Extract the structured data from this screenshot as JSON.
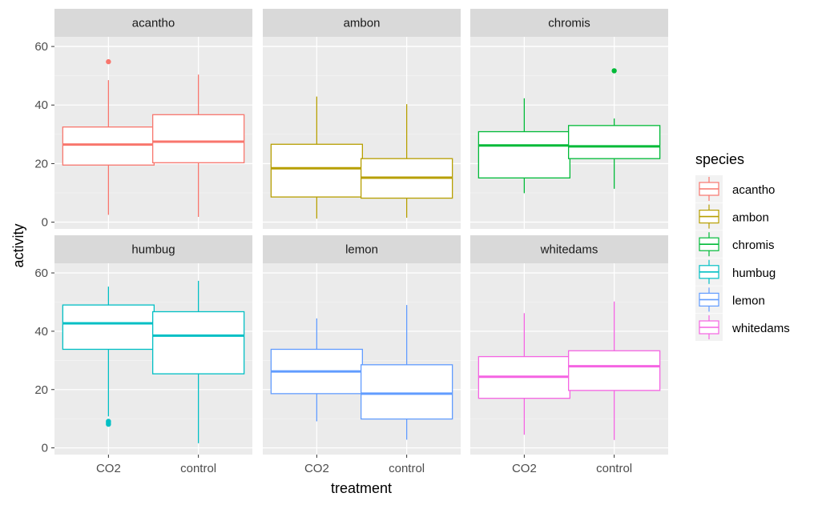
{
  "chart_data": {
    "type": "boxplot",
    "facet_by": "species",
    "x_categories": [
      "CO2",
      "control"
    ],
    "xlabel": "treatment",
    "ylabel": "activity",
    "ylim": [
      0,
      60
    ],
    "y_ticks": [
      0,
      20,
      40,
      60
    ],
    "grid": true,
    "legend": {
      "title": "species",
      "placement": "right",
      "entries": [
        {
          "label": "acantho",
          "color": "#F8766D"
        },
        {
          "label": "ambon",
          "color": "#B79F00"
        },
        {
          "label": "chromis",
          "color": "#00BA38"
        },
        {
          "label": "humbug",
          "color": "#00BFC4"
        },
        {
          "label": "lemon",
          "color": "#619CFF"
        },
        {
          "label": "whitedams",
          "color": "#F564E3"
        }
      ]
    },
    "panels": [
      {
        "species": "acantho",
        "color": "#F8766D",
        "boxes": [
          {
            "treatment": "CO2",
            "min": 2.5,
            "q1": 19.5,
            "median": 26.5,
            "q3": 32.5,
            "max": 48.5,
            "outliers": [
              54.8
            ]
          },
          {
            "treatment": "control",
            "min": 1.8,
            "q1": 20.3,
            "median": 27.5,
            "q3": 36.7,
            "max": 50.4,
            "outliers": []
          }
        ]
      },
      {
        "species": "ambon",
        "color": "#B79F00",
        "boxes": [
          {
            "treatment": "CO2",
            "min": 1.2,
            "q1": 8.6,
            "median": 18.4,
            "q3": 26.6,
            "max": 42.9,
            "outliers": []
          },
          {
            "treatment": "control",
            "min": 1.5,
            "q1": 8.2,
            "median": 15.2,
            "q3": 21.7,
            "max": 40.3,
            "outliers": []
          }
        ]
      },
      {
        "species": "chromis",
        "color": "#00BA38",
        "boxes": [
          {
            "treatment": "CO2",
            "min": 9.9,
            "q1": 15.1,
            "median": 26.2,
            "q3": 30.9,
            "max": 42.3,
            "outliers": []
          },
          {
            "treatment": "control",
            "min": 11.4,
            "q1": 21.7,
            "median": 25.9,
            "q3": 33.0,
            "max": 35.4,
            "outliers": [
              51.7
            ]
          }
        ]
      },
      {
        "species": "humbug",
        "color": "#00BFC4",
        "boxes": [
          {
            "treatment": "CO2",
            "min": 10.8,
            "q1": 33.8,
            "median": 42.7,
            "q3": 49.0,
            "max": 55.3,
            "outliers": [
              8.1,
              8.6,
              9.1
            ]
          },
          {
            "treatment": "control",
            "min": 1.6,
            "q1": 25.4,
            "median": 38.5,
            "q3": 46.7,
            "max": 57.3,
            "outliers": []
          }
        ]
      },
      {
        "species": "lemon",
        "color": "#619CFF",
        "boxes": [
          {
            "treatment": "CO2",
            "min": 9.1,
            "q1": 18.6,
            "median": 26.2,
            "q3": 33.8,
            "max": 44.4,
            "outliers": []
          },
          {
            "treatment": "control",
            "min": 2.8,
            "q1": 9.9,
            "median": 18.6,
            "q3": 28.5,
            "max": 49.0,
            "outliers": []
          }
        ]
      },
      {
        "species": "whitedams",
        "color": "#F564E3",
        "boxes": [
          {
            "treatment": "CO2",
            "min": 4.5,
            "q1": 17.0,
            "median": 24.4,
            "q3": 31.3,
            "max": 46.2,
            "outliers": []
          },
          {
            "treatment": "control",
            "min": 2.7,
            "q1": 19.7,
            "median": 28.0,
            "q3": 33.3,
            "max": 50.2,
            "outliers": []
          }
        ]
      }
    ]
  }
}
